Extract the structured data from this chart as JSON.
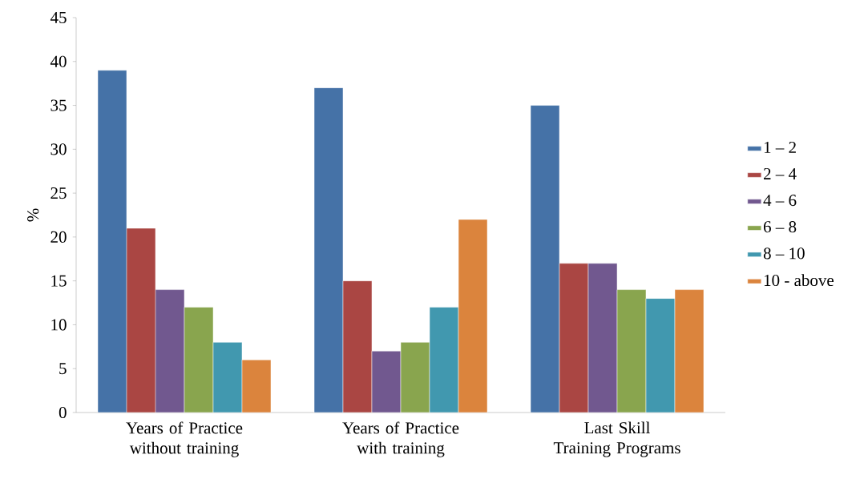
{
  "chart_data": {
    "type": "bar",
    "ylabel": "%",
    "categories": [
      "Years of  Practice without training",
      "Years of Practice with training",
      "Last Skill Training Programs"
    ],
    "series": [
      {
        "name": "1 – 2",
        "color": "#4572a7",
        "values": [
          39,
          37,
          35
        ]
      },
      {
        "name": "2 – 4",
        "color": "#aa4643",
        "values": [
          21,
          15,
          17
        ]
      },
      {
        "name": "4 – 6",
        "color": "#71588f",
        "values": [
          14,
          7,
          17
        ]
      },
      {
        "name": "6 – 8",
        "color": "#89a54e",
        "values": [
          12,
          8,
          14
        ]
      },
      {
        "name": "8 – 10",
        "color": "#4198af",
        "values": [
          8,
          12,
          13
        ]
      },
      {
        "name": "10 - above",
        "color": "#db843d",
        "values": [
          6,
          22,
          14
        ]
      }
    ],
    "ylim": [
      0,
      45
    ],
    "yticks": [
      0,
      5,
      10,
      15,
      20,
      25,
      30,
      35,
      40,
      45
    ],
    "legend": "right"
  }
}
